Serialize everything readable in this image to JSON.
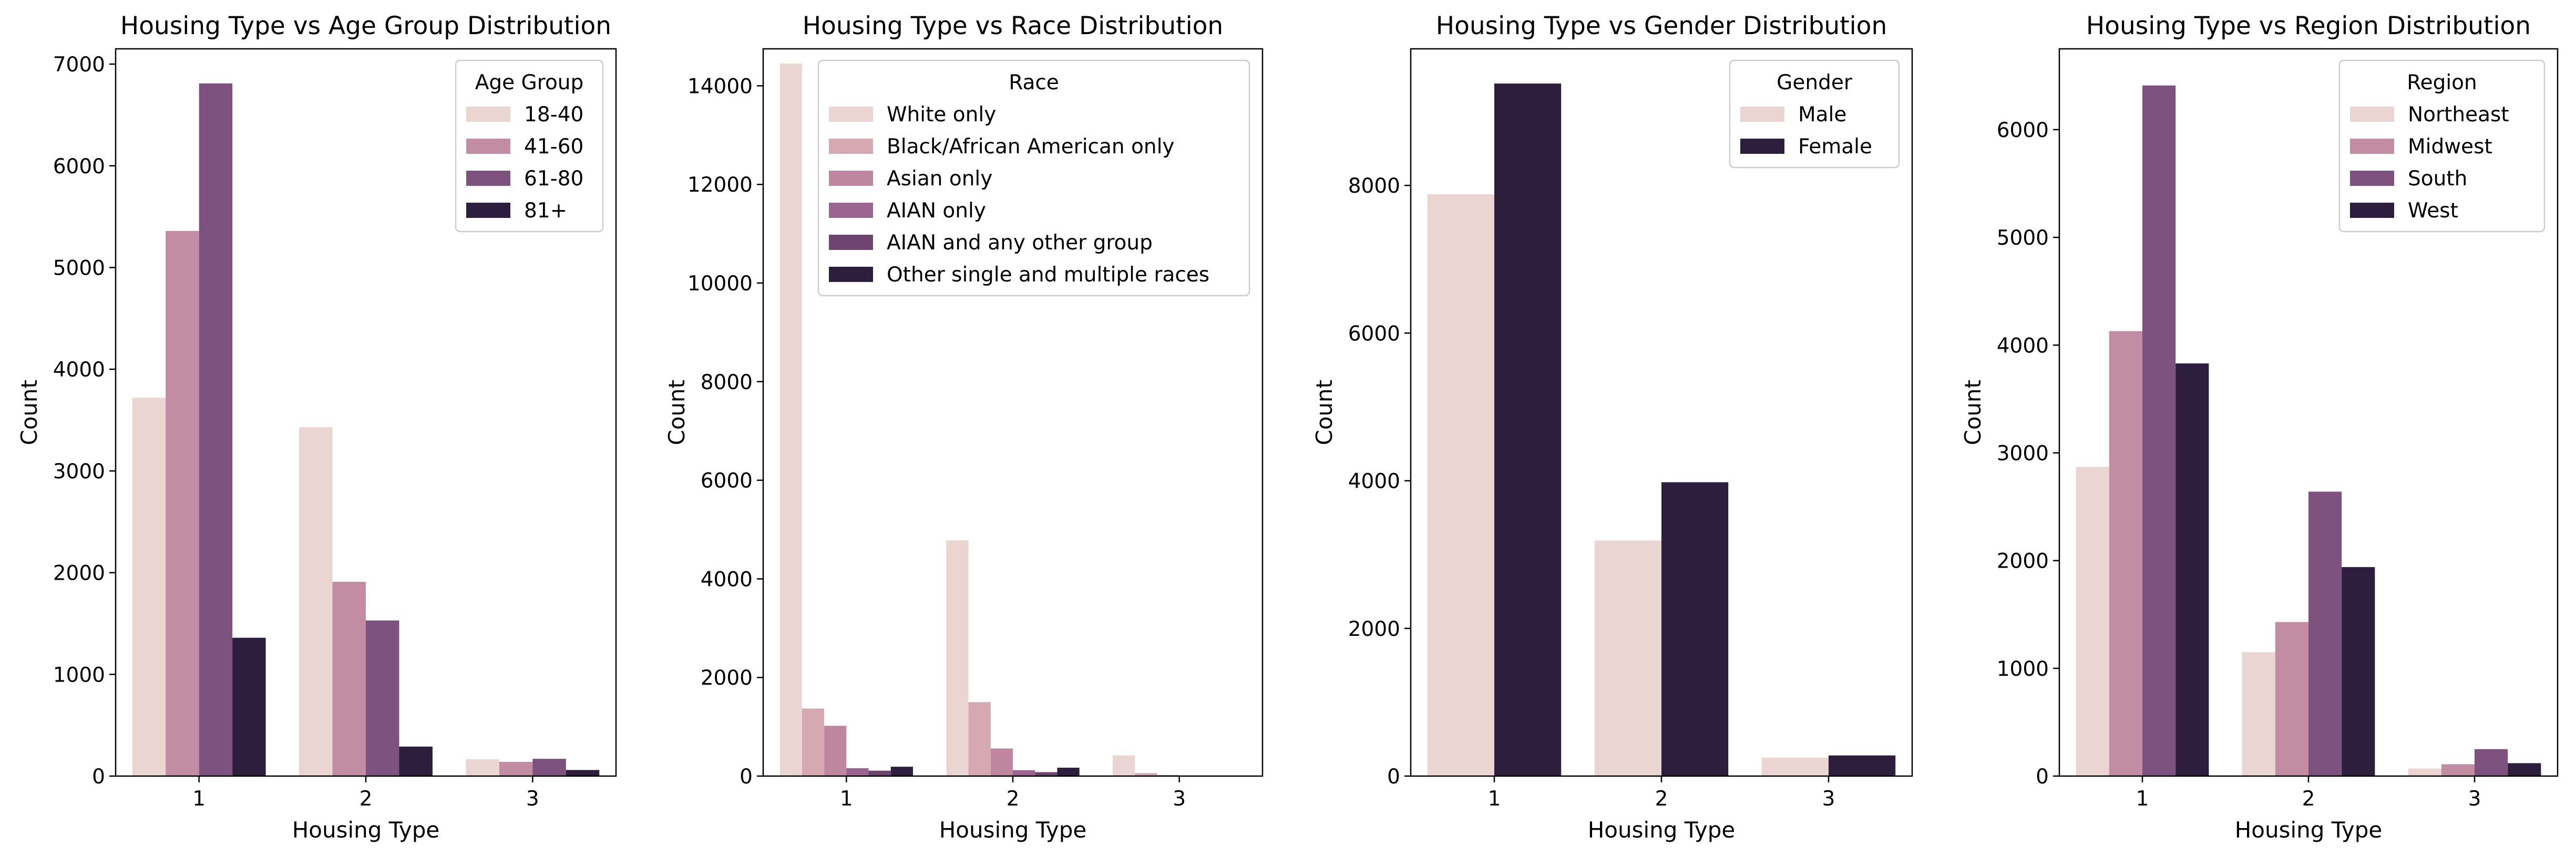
{
  "colors": {
    "frame": "#000000",
    "legend_edge": "#cccccc"
  },
  "chart_data": [
    {
      "type": "bar",
      "title": "Housing Type vs Age Group Distribution",
      "xlabel": "Housing Type",
      "ylabel": "Count",
      "categories": [
        "1",
        "2",
        "3"
      ],
      "ylim": [
        0,
        7150
      ],
      "yticks": [
        0,
        1000,
        2000,
        3000,
        4000,
        5000,
        6000,
        7000
      ],
      "legend": {
        "title": "Age Group",
        "loc": "upper right"
      },
      "series": [
        {
          "name": "18-40",
          "color": "#ebd5d3",
          "values": [
            3720,
            3430,
            165
          ]
        },
        {
          "name": "41-60",
          "color": "#c28da3",
          "values": [
            5360,
            1910,
            140
          ]
        },
        {
          "name": "61-80",
          "color": "#7e527e",
          "values": [
            6810,
            1530,
            170
          ]
        },
        {
          "name": "81+",
          "color": "#2d1e3e",
          "values": [
            1360,
            290,
            60
          ]
        }
      ]
    },
    {
      "type": "bar",
      "title": "Housing Type vs Race Distribution",
      "xlabel": "Housing Type",
      "ylabel": "Count",
      "categories": [
        "1",
        "2",
        "3"
      ],
      "ylim": [
        0,
        14750
      ],
      "yticks": [
        0,
        2000,
        4000,
        6000,
        8000,
        10000,
        12000,
        14000
      ],
      "legend": {
        "title": "Race",
        "loc": "upper right"
      },
      "series": [
        {
          "name": "White only",
          "color": "#ebd5d3",
          "values": [
            14450,
            4780,
            420
          ]
        },
        {
          "name": "Black/African American only",
          "color": "#d6a8b2",
          "values": [
            1370,
            1500,
            60
          ]
        },
        {
          "name": "Asian only",
          "color": "#bf869f",
          "values": [
            1020,
            560,
            20
          ]
        },
        {
          "name": "AIAN only",
          "color": "#9c6591",
          "values": [
            160,
            120,
            10
          ]
        },
        {
          "name": "AIAN and any other group",
          "color": "#6e4471",
          "values": [
            110,
            80,
            10
          ]
        },
        {
          "name": "Other single and multiple races",
          "color": "#2d1e3e",
          "values": [
            190,
            170,
            10
          ]
        }
      ]
    },
    {
      "type": "bar",
      "title": "Housing Type vs Gender Distribution",
      "xlabel": "Housing Type",
      "ylabel": "Count",
      "categories": [
        "1",
        "2",
        "3"
      ],
      "ylim": [
        0,
        9850
      ],
      "yticks": [
        0,
        2000,
        4000,
        6000,
        8000
      ],
      "legend": {
        "title": "Gender",
        "loc": "upper right"
      },
      "series": [
        {
          "name": "Male",
          "color": "#ebd5d3",
          "values": [
            7880,
            3190,
            250
          ]
        },
        {
          "name": "Female",
          "color": "#2d1e3e",
          "values": [
            9380,
            3980,
            280
          ]
        }
      ]
    },
    {
      "type": "bar",
      "title": "Housing Type vs Region Distribution",
      "xlabel": "Housing Type",
      "ylabel": "Count",
      "categories": [
        "1",
        "2",
        "3"
      ],
      "ylim": [
        0,
        6750
      ],
      "yticks": [
        0,
        1000,
        2000,
        3000,
        4000,
        5000,
        6000
      ],
      "legend": {
        "title": "Region",
        "loc": "upper right"
      },
      "series": [
        {
          "name": "Northeast",
          "color": "#ebd5d3",
          "values": [
            2870,
            1150,
            70
          ]
        },
        {
          "name": "Midwest",
          "color": "#c28da3",
          "values": [
            4130,
            1430,
            110
          ]
        },
        {
          "name": "South",
          "color": "#7e527e",
          "values": [
            6410,
            2640,
            250
          ]
        },
        {
          "name": "West",
          "color": "#2d1e3e",
          "values": [
            3830,
            1940,
            120
          ]
        }
      ]
    }
  ]
}
